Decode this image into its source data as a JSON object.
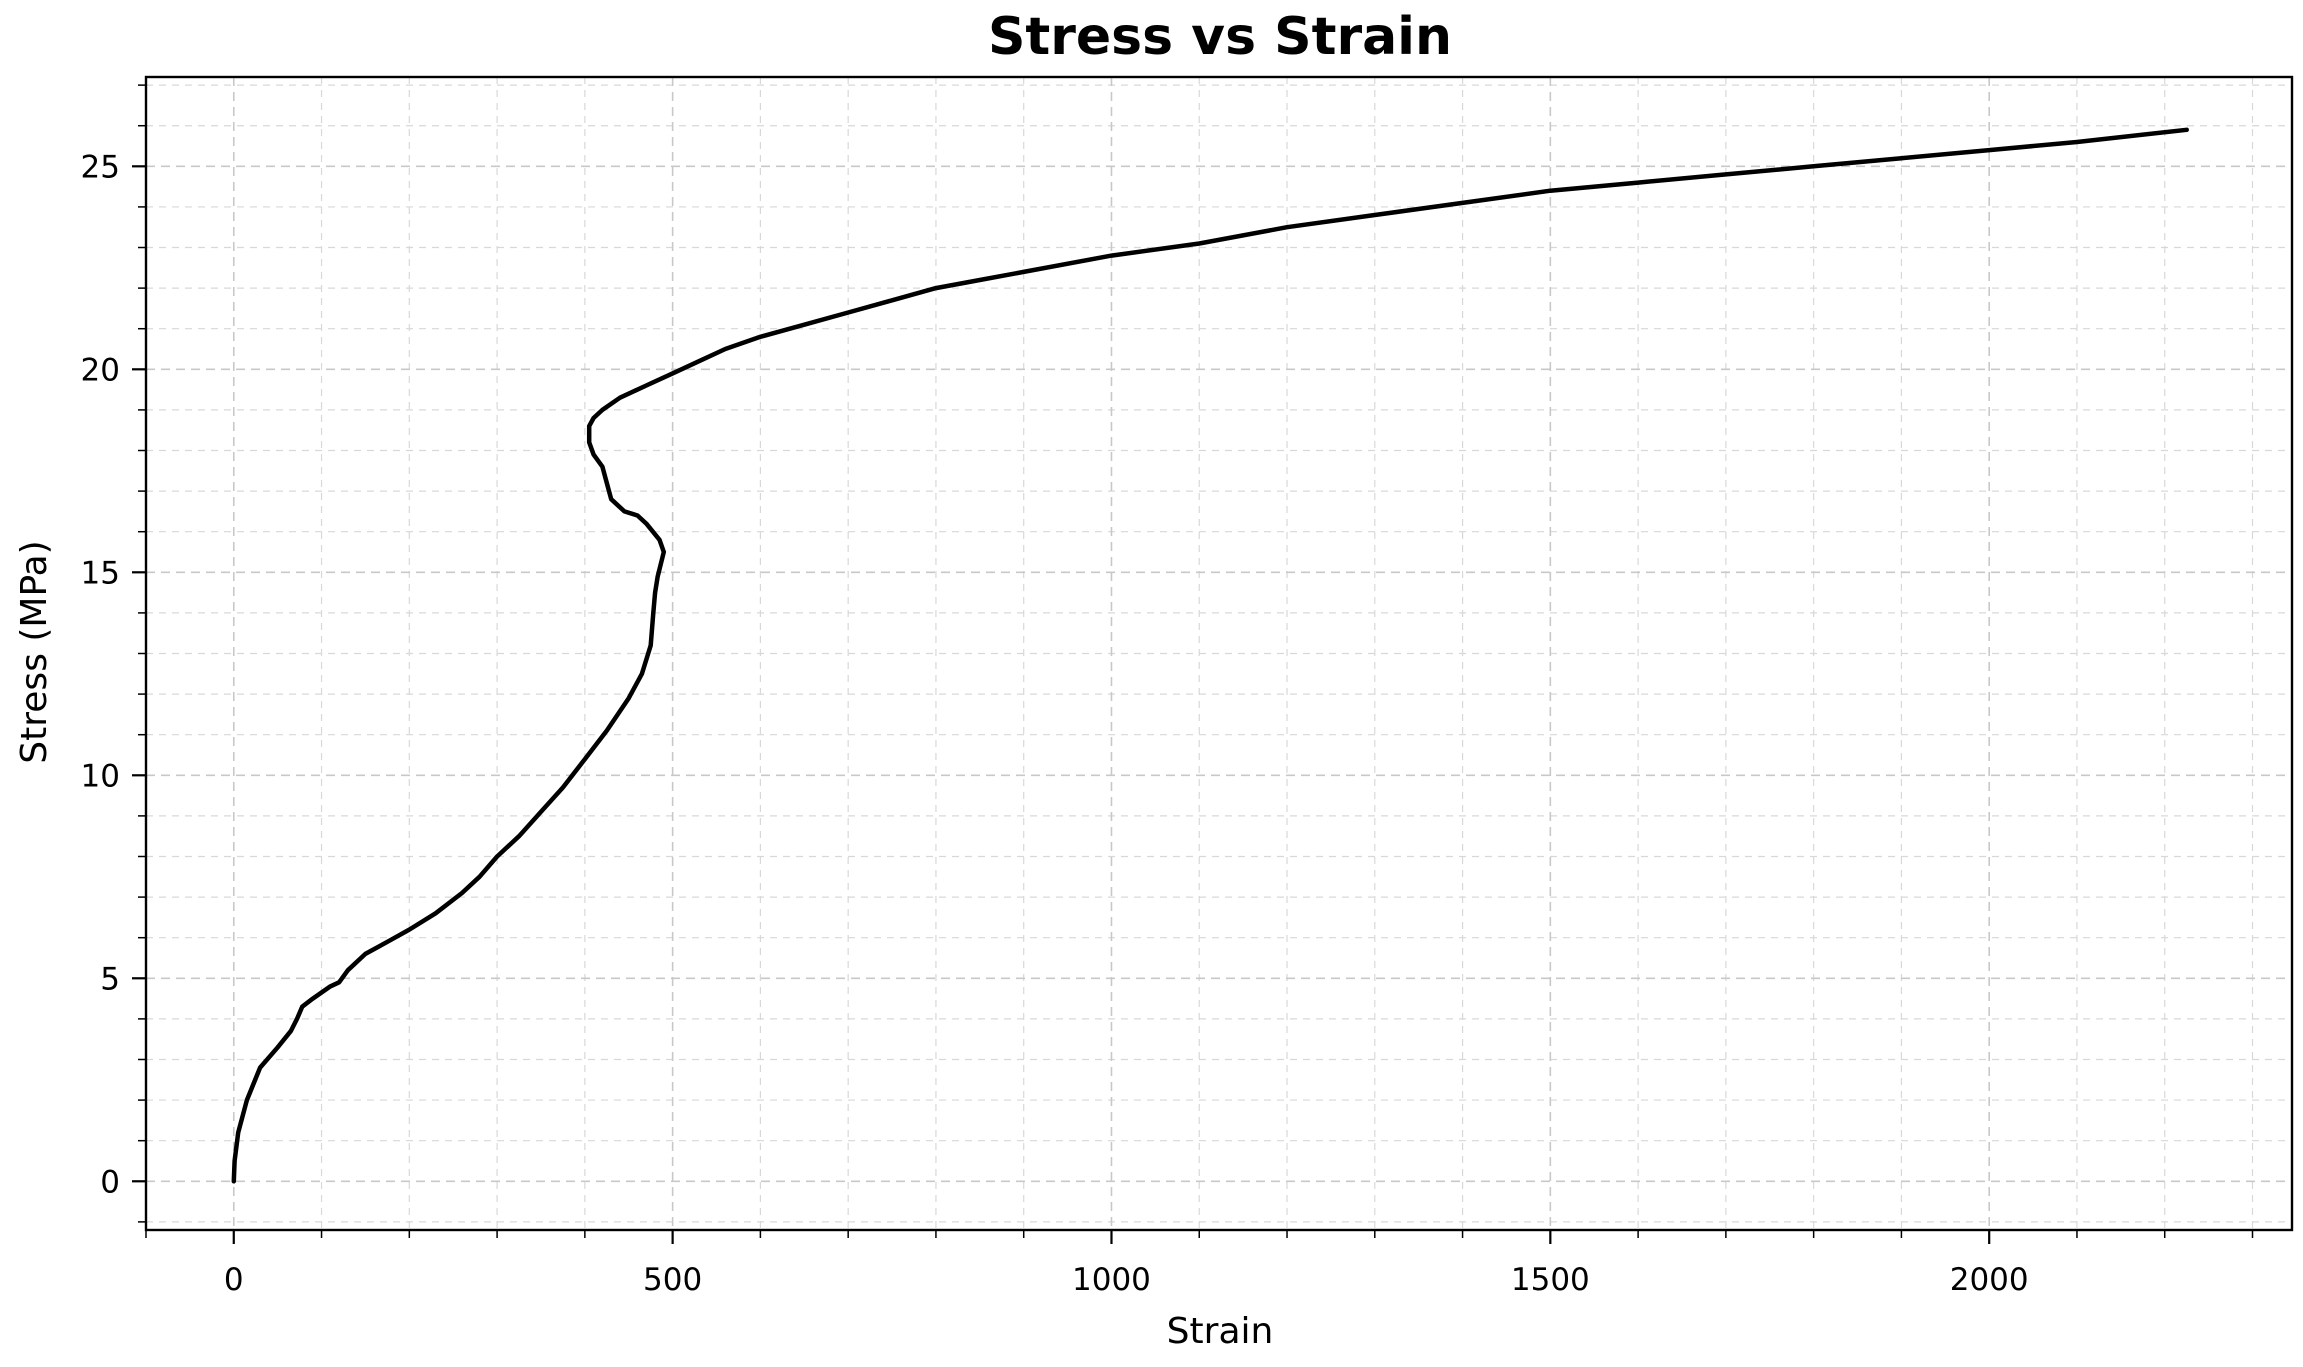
{
  "chart_data": {
    "type": "line",
    "title": "Stress vs Strain",
    "xlabel": "Strain",
    "ylabel": "Stress (MPa)",
    "xlim": [
      -100,
      2345
    ],
    "ylim": [
      -1.2,
      27.2
    ],
    "xticks": [
      0,
      500,
      1000,
      1500,
      2000
    ],
    "xtick_labels": [
      "0",
      "500",
      "1000",
      "1500",
      "2000"
    ],
    "xminor_step": 100,
    "yticks": [
      0,
      5,
      10,
      15,
      20,
      25
    ],
    "ytick_labels": [
      "0",
      "5",
      "10",
      "15",
      "20",
      "25"
    ],
    "yminor_step": 1,
    "grid": true,
    "legend": "none",
    "series": [
      {
        "color": "#000000",
        "x": [
          0,
          1,
          5,
          15,
          30,
          50,
          65,
          72,
          78,
          90,
          110,
          120,
          130,
          150,
          175,
          200,
          230,
          260,
          280,
          300,
          325,
          350,
          375,
          400,
          425,
          450,
          465,
          475,
          478,
          480,
          483,
          490,
          485,
          470,
          460,
          445,
          430,
          425,
          420,
          410,
          405,
          405,
          410,
          420,
          440,
          470,
          500,
          530,
          560,
          600,
          650,
          700,
          750,
          800,
          850,
          900,
          1000,
          1100,
          1200,
          1300,
          1400,
          1500,
          1600,
          1700,
          1800,
          1900,
          2000,
          2100,
          2225
        ],
        "y": [
          0,
          0.5,
          1.2,
          2.0,
          2.8,
          3.3,
          3.7,
          4.0,
          4.3,
          4.5,
          4.8,
          4.9,
          5.2,
          5.6,
          5.9,
          6.2,
          6.6,
          7.1,
          7.5,
          8.0,
          8.5,
          9.1,
          9.7,
          10.4,
          11.1,
          11.9,
          12.5,
          13.2,
          14.0,
          14.5,
          14.9,
          15.5,
          15.8,
          16.2,
          16.4,
          16.5,
          16.8,
          17.2,
          17.6,
          17.9,
          18.2,
          18.6,
          18.8,
          19.0,
          19.3,
          19.6,
          19.9,
          20.2,
          20.5,
          20.8,
          21.1,
          21.4,
          21.7,
          22.0,
          22.2,
          22.4,
          22.8,
          23.1,
          23.5,
          23.8,
          24.1,
          24.4,
          24.6,
          24.8,
          25.0,
          25.2,
          25.4,
          25.6,
          25.9
        ]
      }
    ]
  }
}
